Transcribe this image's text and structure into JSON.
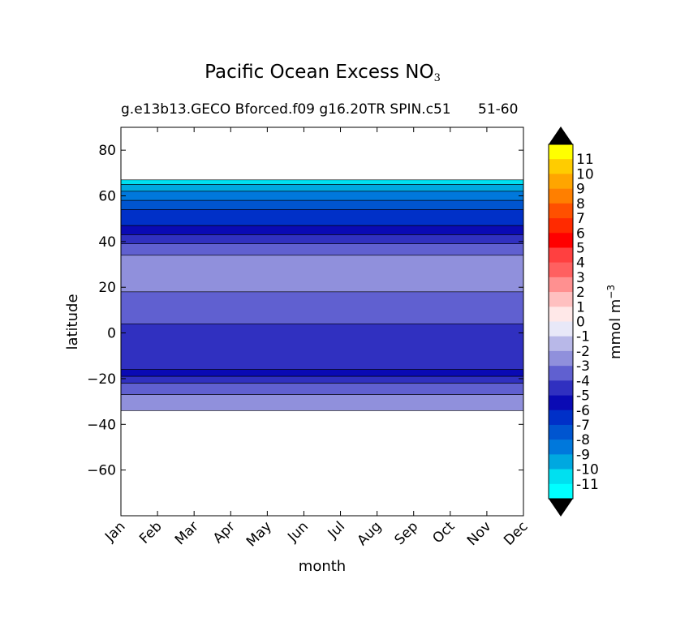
{
  "chart_data": {
    "type": "contour",
    "title": "Pacific Ocean Excess NO",
    "title_subscript": "3",
    "subtitle": "g.e13b13.GECO Bforced.f09 g16.20TR SPIN.c51",
    "subtitle_right": "51-60",
    "xlabel": "month",
    "ylabel": "latitude",
    "x_categories": [
      "Jan",
      "Feb",
      "Mar",
      "Apr",
      "May",
      "Jun",
      "Jul",
      "Aug",
      "Sep",
      "Oct",
      "Nov",
      "Dec"
    ],
    "ylim": [
      -80,
      90
    ],
    "y_ticks": [
      80,
      60,
      40,
      20,
      0,
      -20,
      -40,
      -60
    ],
    "y_tick_labels": [
      "80",
      "60",
      "40",
      "20",
      "0",
      "−20",
      "−40",
      "−60"
    ],
    "data_lat_range": [
      -34,
      67
    ],
    "bands": [
      {
        "lat_from": 65,
        "lat_to": 67,
        "value": -11
      },
      {
        "lat_from": 62,
        "lat_to": 65,
        "value": -10
      },
      {
        "lat_from": 58,
        "lat_to": 62,
        "value": -9
      },
      {
        "lat_from": 54,
        "lat_to": 58,
        "value": -8
      },
      {
        "lat_from": 47,
        "lat_to": 54,
        "value": -7
      },
      {
        "lat_from": 43,
        "lat_to": 47,
        "value": -6
      },
      {
        "lat_from": 39,
        "lat_to": 43,
        "value": -5
      },
      {
        "lat_from": 34,
        "lat_to": 39,
        "value": -4
      },
      {
        "lat_from": 18,
        "lat_to": 34,
        "value": -3
      },
      {
        "lat_from": 4,
        "lat_to": 18,
        "value": -4
      },
      {
        "lat_from": -16,
        "lat_to": 4,
        "value": -5
      },
      {
        "lat_from": -19,
        "lat_to": -16,
        "value": -6
      },
      {
        "lat_from": -22,
        "lat_to": -19,
        "value": -5
      },
      {
        "lat_from": -27,
        "lat_to": -22,
        "value": -4
      },
      {
        "lat_from": -34,
        "lat_to": -27,
        "value": -3
      }
    ],
    "colorbar": {
      "label": "mmol m",
      "label_superscript": "−3",
      "levels": [
        "11",
        "10",
        "9",
        "8",
        "7",
        "6",
        "5",
        "4",
        "3",
        "2",
        "1",
        "0",
        "-1",
        "-2",
        "-3",
        "-4",
        "-5",
        "-6",
        "-7",
        "-8",
        "-9",
        "-10",
        "-11"
      ],
      "colors": [
        "#ffff00",
        "#ffcc00",
        "#ffa500",
        "#ff7f00",
        "#ff5000",
        "#ff2a00",
        "#ff0000",
        "#ff4040",
        "#ff6060",
        "#ff9090",
        "#ffc0c0",
        "#ffe8e8",
        "#e8e8f8",
        "#b8b8e8",
        "#9090dc",
        "#6060d0",
        "#3030c0",
        "#0a0ab4",
        "#0030c8",
        "#0055d0",
        "#0078dc",
        "#00a8e0",
        "#00e0f0",
        "#00ffff"
      ],
      "over_color": "#000000",
      "under_color": "#000000"
    }
  }
}
